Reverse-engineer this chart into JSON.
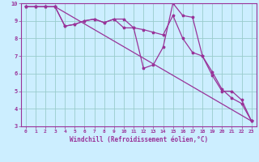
{
  "xlabel": "Windchill (Refroidissement éolien,°C)",
  "xlim": [
    -0.5,
    23.5
  ],
  "ylim": [
    3,
    10
  ],
  "yticks": [
    3,
    4,
    5,
    6,
    7,
    8,
    9,
    10
  ],
  "xticks": [
    0,
    1,
    2,
    3,
    4,
    5,
    6,
    7,
    8,
    9,
    10,
    11,
    12,
    13,
    14,
    15,
    16,
    17,
    18,
    19,
    20,
    21,
    22,
    23
  ],
  "bg_color": "#cceeff",
  "line_color": "#993399",
  "grid_color": "#99cccc",
  "line1_x": [
    0,
    1,
    2,
    3,
    4,
    5,
    6,
    7,
    8,
    9,
    10,
    11,
    12,
    13,
    14,
    15,
    16,
    17,
    18,
    19,
    20,
    21,
    22,
    23
  ],
  "line1_y": [
    9.8,
    9.8,
    9.8,
    9.8,
    8.7,
    8.8,
    9.0,
    9.1,
    8.9,
    9.1,
    9.1,
    8.6,
    8.5,
    8.35,
    8.2,
    9.3,
    8.0,
    7.2,
    7.0,
    6.1,
    5.1,
    4.6,
    4.3,
    3.3
  ],
  "line2_x": [
    0,
    1,
    2,
    3,
    4,
    5,
    6,
    7,
    8,
    9,
    10,
    11,
    12,
    13,
    14,
    15,
    16,
    17,
    18,
    19,
    20,
    21,
    22,
    23
  ],
  "line2_y": [
    9.8,
    9.8,
    9.8,
    9.8,
    8.7,
    8.8,
    9.0,
    9.1,
    8.9,
    9.1,
    8.6,
    8.6,
    6.3,
    6.5,
    7.5,
    10.0,
    9.3,
    9.2,
    7.0,
    5.9,
    5.0,
    5.0,
    4.5,
    3.3
  ],
  "line3_x": [
    0,
    1,
    2,
    3,
    23
  ],
  "line3_y": [
    9.8,
    9.8,
    9.8,
    9.8,
    3.3
  ]
}
